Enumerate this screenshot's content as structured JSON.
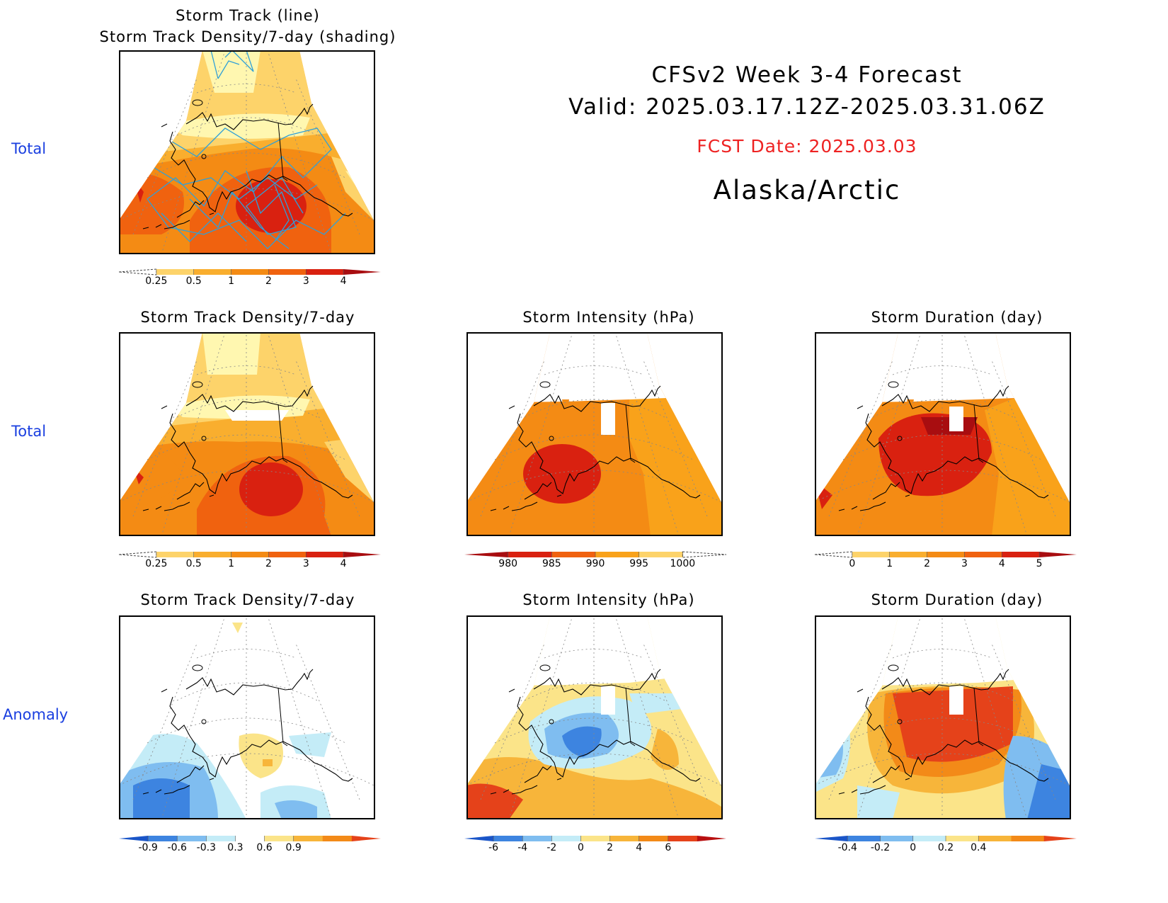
{
  "header": {
    "line1": "CFSv2 Week 3-4 Forecast",
    "line2": "Valid: 2025.03.17.12Z-2025.03.31.06Z",
    "fcst_date": "FCST Date: 2025.03.03",
    "region": "Alaska/Arctic"
  },
  "row_labels": [
    "Total",
    "Total",
    "Anomaly"
  ],
  "panels": {
    "track": {
      "title1": "Storm Track (line)",
      "title2": "Storm Track Density/7-day (shading)"
    },
    "total_density": {
      "title": "Storm Track Density/7-day"
    },
    "total_intensity": {
      "title": "Storm Intensity (hPa)"
    },
    "total_duration": {
      "title": "Storm Duration (day)"
    },
    "anom_density": {
      "title": "Storm Track Density/7-day"
    },
    "anom_intensity": {
      "title": "Storm Intensity (hPa)"
    },
    "anom_duration": {
      "title": "Storm Duration (day)"
    }
  },
  "colorbars": {
    "density_total": {
      "labels": [
        "0.25",
        "0.5",
        "1",
        "2",
        "3",
        "4"
      ],
      "colors": [
        "#fff7b0",
        "#fdd36a",
        "#f9ae2e",
        "#f48b14",
        "#f0620f",
        "#d92110",
        "#a80d10"
      ]
    },
    "intensity_total": {
      "labels": [
        "980",
        "985",
        "990",
        "995",
        "1000"
      ],
      "colors": [
        "#a80d10",
        "#d92110",
        "#f0620f",
        "#f9a21a",
        "#fdd36a",
        "#fff7b0"
      ]
    },
    "duration_total": {
      "labels": [
        "0",
        "1",
        "2",
        "3",
        "4",
        "5"
      ],
      "colors": [
        "#fff7b0",
        "#fdd36a",
        "#f9ae2e",
        "#f48b14",
        "#f0620f",
        "#d92110",
        "#a80d10"
      ]
    },
    "density_anom": {
      "labels": [
        "-0.9",
        "-0.6",
        "-0.3",
        "0.3",
        "0.6",
        "0.9"
      ],
      "colors": [
        "#1a55c8",
        "#3d84e0",
        "#7fbdf0",
        "#c4ecf7",
        "#ffffff",
        "#fbe489",
        "#f7b53a",
        "#f38a18",
        "#e5421a"
      ]
    },
    "intensity_anom": {
      "labels": [
        "-6",
        "-4",
        "-2",
        "0",
        "2",
        "4",
        "6"
      ],
      "colors": [
        "#1a55c8",
        "#3d84e0",
        "#7fbdf0",
        "#c4ecf7",
        "#fbe489",
        "#f7b53a",
        "#f38a18",
        "#e5421a",
        "#b80f10"
      ]
    },
    "duration_anom": {
      "labels": [
        "-0.4",
        "-0.2",
        "0",
        "0.2",
        "0.4"
      ],
      "colors": [
        "#1a55c8",
        "#3d84e0",
        "#7fbdf0",
        "#c4ecf7",
        "#fbe489",
        "#f7b53a",
        "#f38a18",
        "#e5421a"
      ]
    }
  },
  "colors": {
    "row_label": "#1a3fe0",
    "fcst_date": "#ee2222",
    "track_line": "#2fa0d8"
  }
}
